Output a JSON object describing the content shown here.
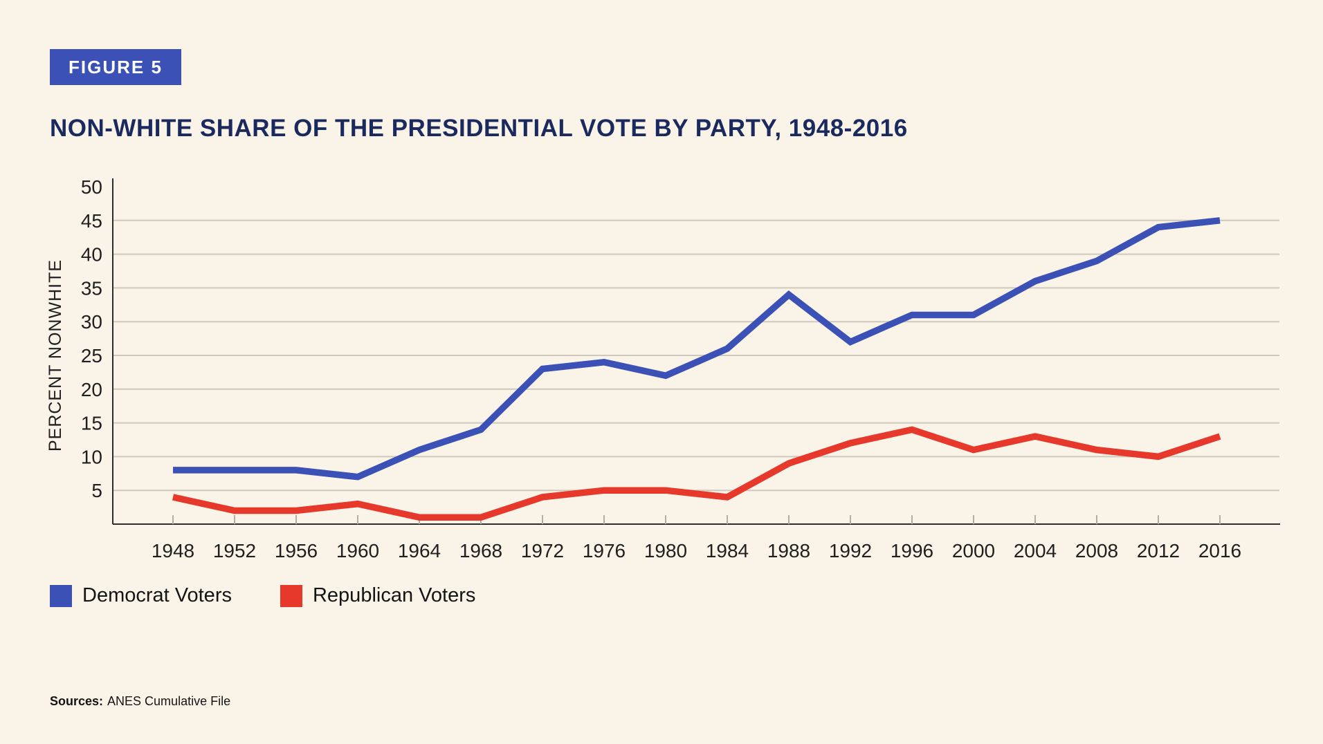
{
  "badge": {
    "label": "FIGURE 5"
  },
  "chart_data": {
    "type": "line",
    "title": "NON-WHITE SHARE OF THE PRESIDENTIAL VOTE BY PARTY, 1948-2016",
    "xlabel": "",
    "ylabel": "PERCENT NONWHITE",
    "x": [
      1948,
      1952,
      1956,
      1960,
      1964,
      1968,
      1972,
      1976,
      1980,
      1984,
      1988,
      1992,
      1996,
      2000,
      2004,
      2008,
      2012,
      2016
    ],
    "series": [
      {
        "name": "Democrat Voters",
        "color": "#3b51b5",
        "values": [
          8,
          8,
          8,
          7,
          11,
          14,
          23,
          24,
          22,
          26,
          34,
          27,
          31,
          31,
          36,
          39,
          44,
          45
        ]
      },
      {
        "name": "Republican Voters",
        "color": "#e6392c",
        "values": [
          4,
          2,
          2,
          3,
          1,
          1,
          4,
          5,
          5,
          4,
          9,
          12,
          14,
          11,
          13,
          11,
          10,
          13
        ]
      }
    ],
    "ylim": [
      0,
      50
    ],
    "yticks": [
      5,
      10,
      15,
      20,
      25,
      30,
      35,
      40,
      45,
      50
    ],
    "grid": "horizontal-only",
    "legend_position": "bottom-left"
  },
  "legend": {
    "items": [
      {
        "label": "Democrat Voters",
        "color": "#3b51b5"
      },
      {
        "label": "Republican Voters",
        "color": "#e6392c"
      }
    ]
  },
  "sources": {
    "label": "Sources:",
    "text": "ANES Cumulative File"
  },
  "colors": {
    "background": "#faf3e7",
    "badge_bg": "#3b51b5",
    "badge_text": "#ffffff",
    "title": "#1b2a5e",
    "grid": "#cfc9bd",
    "axis": "#2b2b2b",
    "tick_label": "#1f1f1f",
    "text": "#141414"
  }
}
